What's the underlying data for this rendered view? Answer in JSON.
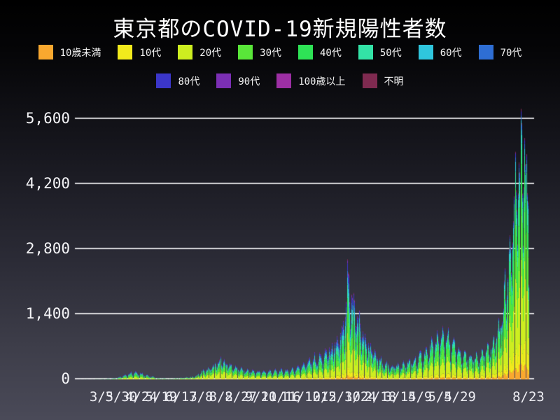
{
  "page": {
    "background_top_color": "#000000",
    "background_bottom_color": "#4a4a58",
    "text_color": "#ffffff",
    "gridline_color": "#fafafc"
  },
  "chart_data": {
    "type": "bar",
    "variant": "stacked-daily-bars-timeseries",
    "title": "東京都のCOVID-19新規陽性者数",
    "legend_position": "top",
    "grid": true,
    "start_date": "2020-02-05",
    "end_date": "2021-08-23",
    "y_axis": {
      "ticks": [
        {
          "value": 0,
          "label": "0"
        },
        {
          "value": 1400,
          "label": "1,400"
        },
        {
          "value": 2800,
          "label": "2,800"
        },
        {
          "value": 4200,
          "label": "4,200"
        },
        {
          "value": 5600,
          "label": "5,600"
        }
      ],
      "visible_max": 5900
    },
    "x_axis": {
      "tick_interval_days": 25,
      "ticks": [
        {
          "label": "3/5",
          "day": 29
        },
        {
          "label": "3/30",
          "day": 54
        },
        {
          "label": "4/24",
          "day": 79
        },
        {
          "label": "5/19",
          "day": 104
        },
        {
          "label": "6/13",
          "day": 129
        },
        {
          "label": "7/8",
          "day": 154
        },
        {
          "label": "8/2",
          "day": 179
        },
        {
          "label": "8/27",
          "day": 204
        },
        {
          "label": "9/21",
          "day": 229
        },
        {
          "label": "10/16",
          "day": 254
        },
        {
          "label": "11/10",
          "day": 279
        },
        {
          "label": "12/5",
          "day": 304
        },
        {
          "label": "12/30",
          "day": 329
        },
        {
          "label": "1/24",
          "day": 354
        },
        {
          "label": "2/18",
          "day": 379
        },
        {
          "label": "3/15",
          "day": 404
        },
        {
          "label": "4/9",
          "day": 429
        },
        {
          "label": "5/4",
          "day": 454
        },
        {
          "label": "5/29",
          "day": 479
        },
        {
          "label": "8/23",
          "day": 565
        }
      ]
    },
    "series": [
      {
        "name": "10歳未満",
        "color": "#f9a82f"
      },
      {
        "name": "10代",
        "color": "#f2ea1c"
      },
      {
        "name": "20代",
        "color": "#cdee20"
      },
      {
        "name": "30代",
        "color": "#59e639"
      },
      {
        "name": "40代",
        "color": "#2ee356"
      },
      {
        "name": "50代",
        "color": "#33e3a6"
      },
      {
        "name": "60代",
        "color": "#2fc6dd"
      },
      {
        "name": "70代",
        "color": "#2e6ed4"
      },
      {
        "name": "80代",
        "color": "#3b36c9"
      },
      {
        "name": "90代",
        "color": "#7b2fb4"
      },
      {
        "name": "100歳以上",
        "color": "#9d2fa4"
      },
      {
        "name": "不明",
        "color": "#7f2a50"
      }
    ],
    "weekday_factors_mon_to_sun": [
      0.6,
      0.82,
      1.02,
      1.12,
      1.18,
      1.12,
      0.88
    ],
    "noise_amplitude": 0.3,
    "envelope_daily_avg_total": [
      [
        0,
        2
      ],
      [
        20,
        3
      ],
      [
        29,
        8
      ],
      [
        44,
        22
      ],
      [
        52,
        55
      ],
      [
        65,
        150
      ],
      [
        72,
        165
      ],
      [
        85,
        95
      ],
      [
        100,
        25
      ],
      [
        116,
        14
      ],
      [
        131,
        35
      ],
      [
        146,
        55
      ],
      [
        156,
        170
      ],
      [
        169,
        280
      ],
      [
        178,
        390
      ],
      [
        185,
        345
      ],
      [
        197,
        255
      ],
      [
        213,
        180
      ],
      [
        233,
        165
      ],
      [
        248,
        180
      ],
      [
        263,
        195
      ],
      [
        274,
        250
      ],
      [
        289,
        400
      ],
      [
        304,
        470
      ],
      [
        319,
        640
      ],
      [
        330,
        920
      ],
      [
        334,
        1150
      ],
      [
        337,
        2000
      ],
      [
        340,
        1700
      ],
      [
        345,
        1550
      ],
      [
        352,
        1150
      ],
      [
        361,
        780
      ],
      [
        376,
        420
      ],
      [
        389,
        280
      ],
      [
        404,
        290
      ],
      [
        420,
        380
      ],
      [
        435,
        560
      ],
      [
        451,
        860
      ],
      [
        458,
        960
      ],
      [
        465,
        820
      ],
      [
        481,
        520
      ],
      [
        496,
        420
      ],
      [
        511,
        560
      ],
      [
        521,
        760
      ],
      [
        531,
        1250
      ],
      [
        542,
        2900
      ],
      [
        549,
        3900
      ],
      [
        555,
        4750
      ],
      [
        561,
        4350
      ],
      [
        565,
        3700
      ]
    ],
    "age_share_keyframes": [
      {
        "day": 0,
        "shares": [
          0.02,
          0.03,
          0.2,
          0.17,
          0.15,
          0.13,
          0.09,
          0.08,
          0.07,
          0.04,
          0.002,
          0.018
        ]
      },
      {
        "day": 150,
        "shares": [
          0.02,
          0.05,
          0.33,
          0.22,
          0.13,
          0.09,
          0.06,
          0.04,
          0.03,
          0.012,
          0.001,
          0.017
        ]
      },
      {
        "day": 320,
        "shares": [
          0.03,
          0.06,
          0.25,
          0.17,
          0.14,
          0.11,
          0.08,
          0.07,
          0.055,
          0.025,
          0.002,
          0.008
        ]
      },
      {
        "day": 470,
        "shares": [
          0.04,
          0.07,
          0.29,
          0.21,
          0.16,
          0.11,
          0.05,
          0.03,
          0.02,
          0.008,
          0.001,
          0.011
        ]
      },
      {
        "day": 565,
        "shares": [
          0.06,
          0.09,
          0.3,
          0.22,
          0.16,
          0.09,
          0.04,
          0.018,
          0.012,
          0.004,
          0.001,
          0.005
        ]
      }
    ]
  }
}
